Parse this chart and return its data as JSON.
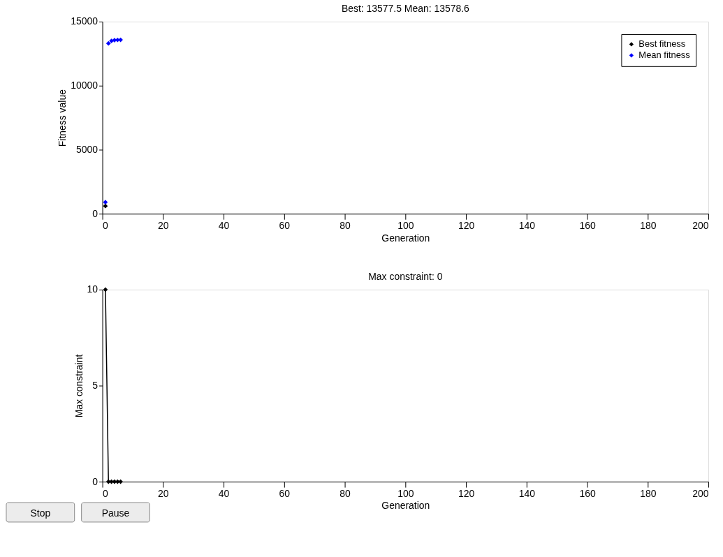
{
  "chart_data": [
    {
      "type": "scatter",
      "title": "Best: 13577.5 Mean: 13578.6",
      "xlabel": "Generation",
      "ylabel": "Fitness value",
      "x": [
        1,
        2,
        3,
        4,
        5,
        6
      ],
      "series": [
        {
          "name": "Best fitness",
          "color": "#000000",
          "values": [
            600,
            null,
            null,
            null,
            null,
            null
          ]
        },
        {
          "name": "Mean fitness",
          "color": "#0000ff",
          "values": [
            900,
            13300,
            13500,
            13550,
            13570,
            13580
          ]
        }
      ],
      "xlim": [
        0,
        200
      ],
      "xticks": [
        0,
        20,
        40,
        60,
        80,
        100,
        120,
        140,
        160,
        180,
        200
      ],
      "ylim": [
        0,
        15000
      ],
      "yticks": [
        0,
        5000,
        10000,
        15000
      ],
      "legend": "top right",
      "marker": "diamond",
      "grid": false
    },
    {
      "type": "line",
      "title": "Max constraint: 0",
      "xlabel": "Generation",
      "ylabel": "Max constraint",
      "x": [
        1,
        2,
        3,
        4,
        5,
        6
      ],
      "series": [
        {
          "color": "#000000",
          "values": [
            10,
            0,
            0,
            0,
            0,
            0
          ]
        }
      ],
      "xlim": [
        0,
        200
      ],
      "xticks": [
        0,
        20,
        40,
        60,
        80,
        100,
        120,
        140,
        160,
        180,
        200
      ],
      "ylim": [
        0,
        10
      ],
      "yticks": [
        0,
        5,
        10
      ],
      "marker": "diamond",
      "grid": false,
      "legend": false,
      "annotations": [
        "Stop",
        "Pause"
      ]
    }
  ]
}
